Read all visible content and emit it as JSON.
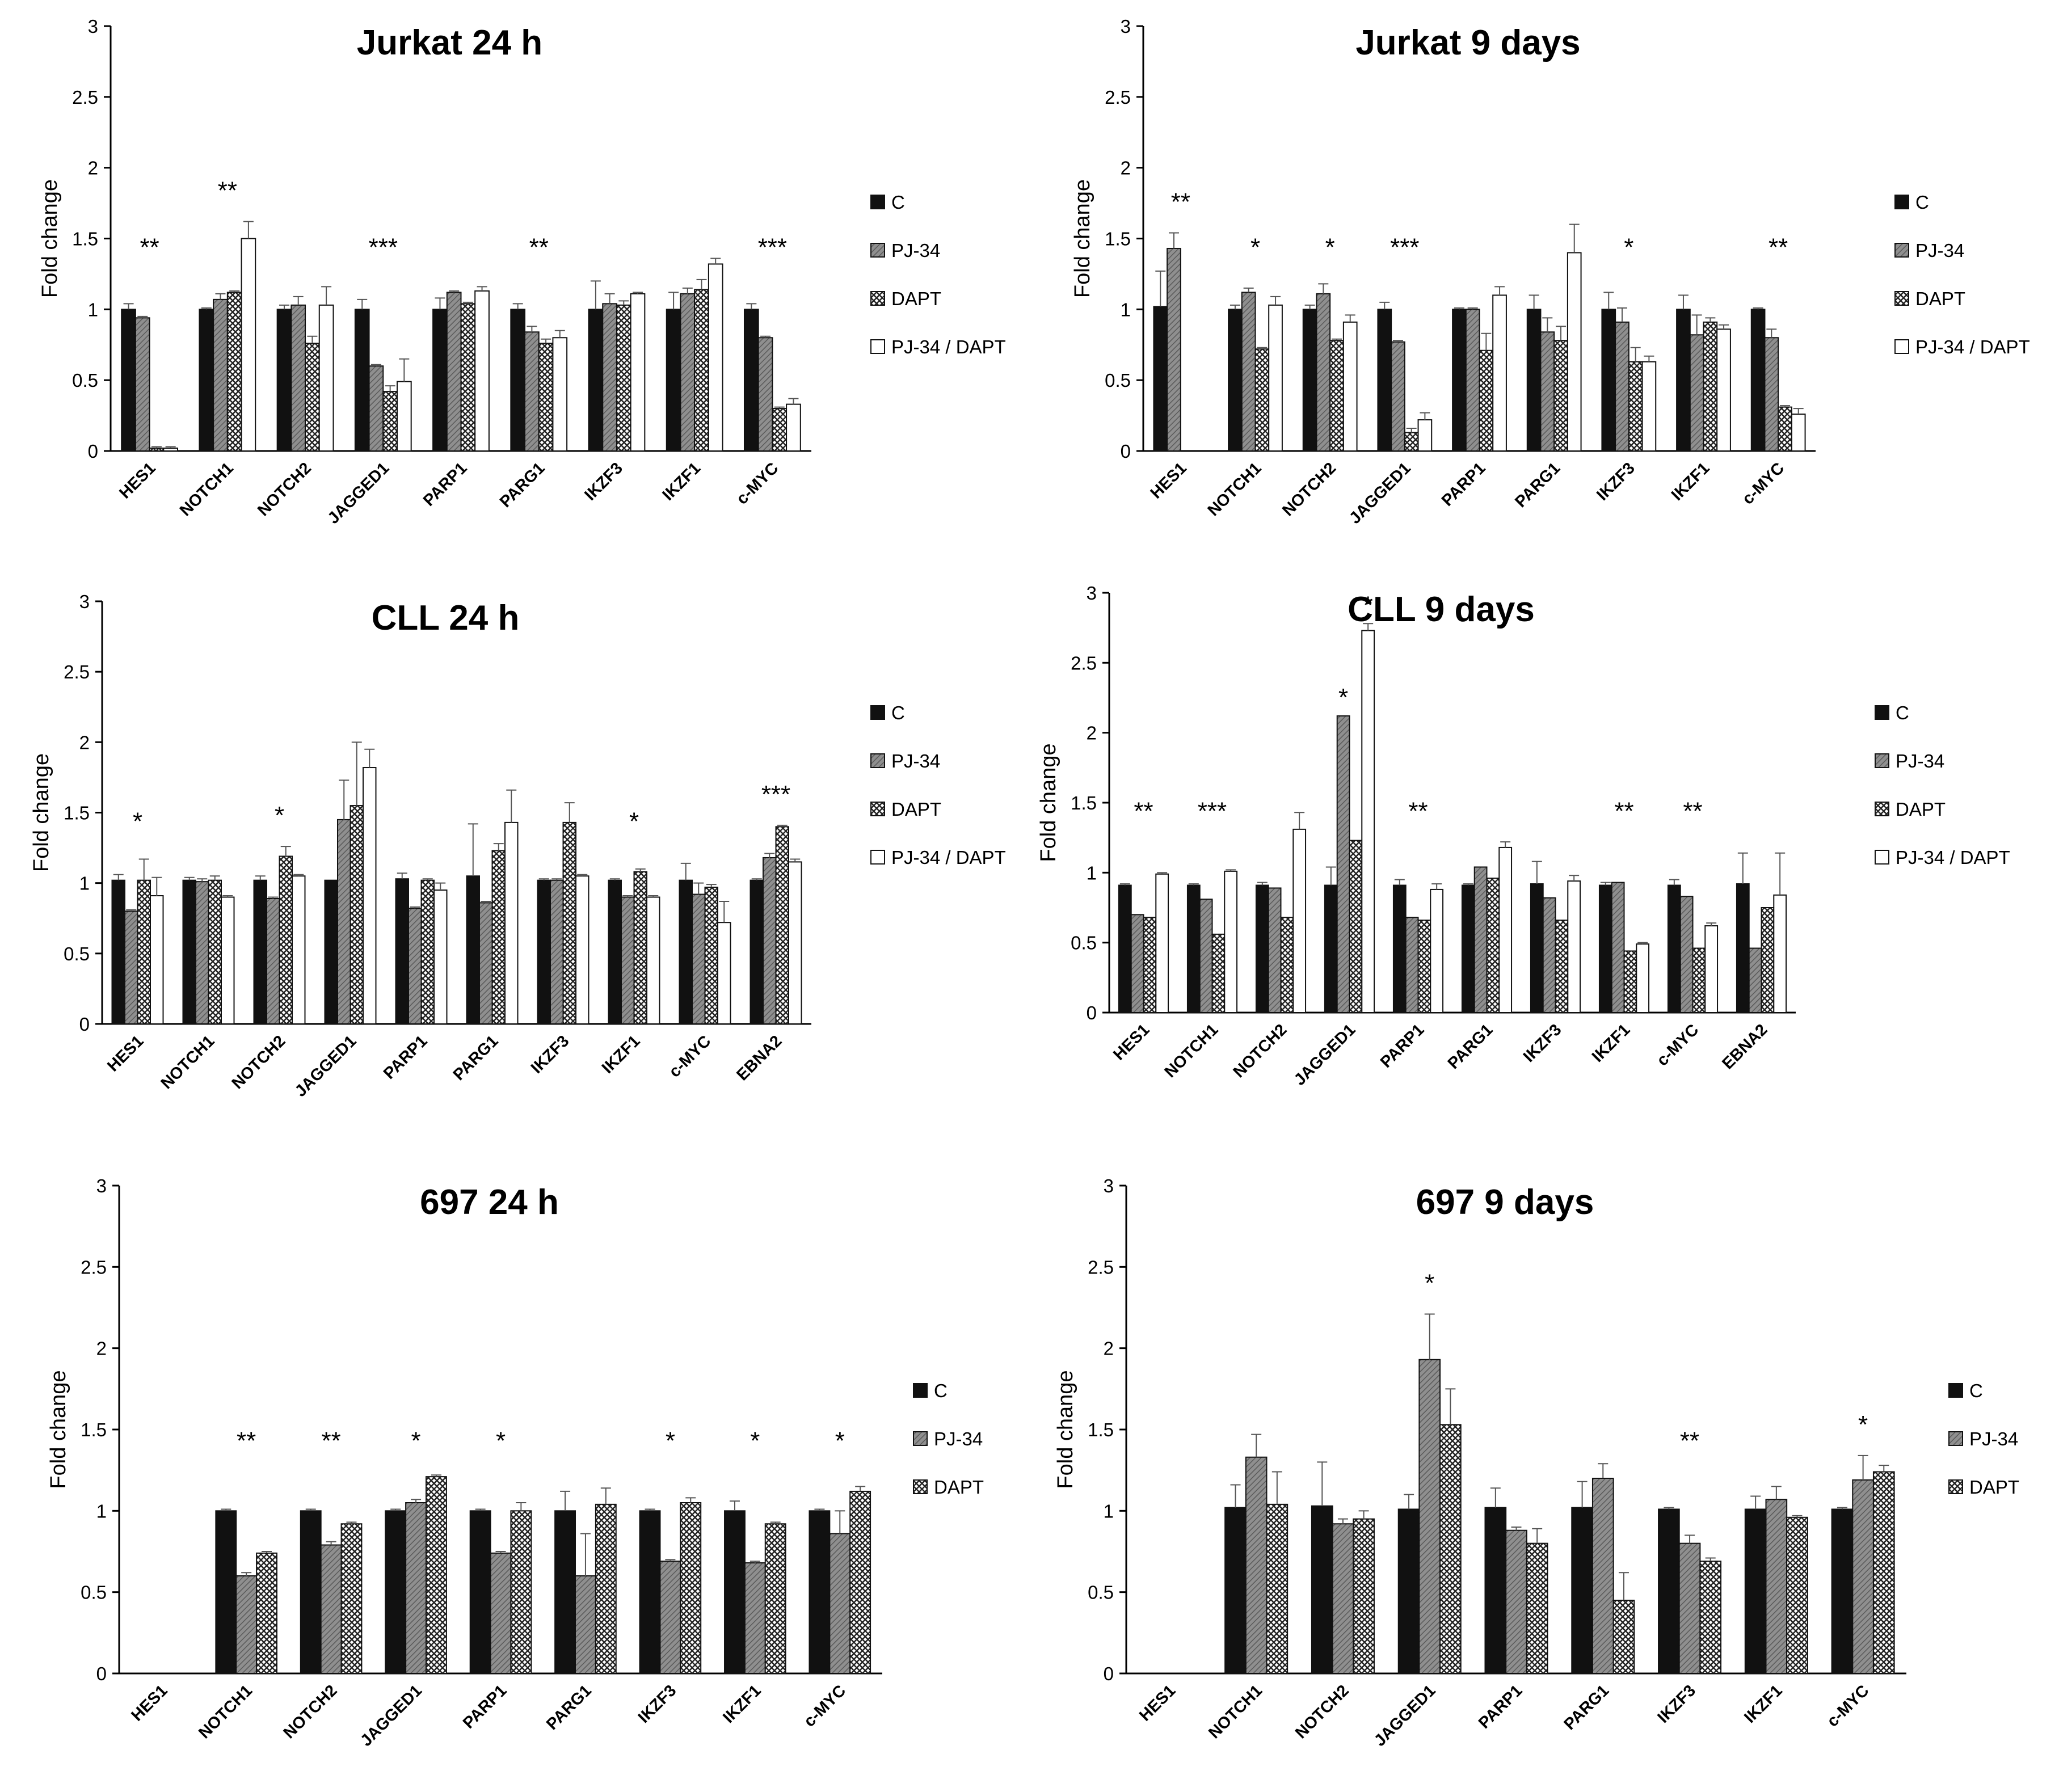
{
  "patterns": {
    "C": "solid-black",
    "PJ-34": "gray-hatched",
    "DAPT": "checkered",
    "PJ-34 / DAPT": "white"
  },
  "colors": {
    "dark": "#111111",
    "gray": "#8a8a8a",
    "white": "#ffffff"
  },
  "chart_data": [
    {
      "type": "bar",
      "title": "Jurkat 24 h",
      "ylabel": "Fold change",
      "ylim": [
        0,
        3
      ],
      "yticks": [
        "0",
        "0.5",
        "1",
        "1.5",
        "2",
        "2.5",
        "3"
      ],
      "grid": false,
      "legend": "right",
      "categories": [
        "HES1",
        "NOTCH1",
        "NOTCH2",
        "JAGGED1",
        "PARP1",
        "PARG1",
        "IKZF3",
        "IKZF1",
        "c-MYC"
      ],
      "significance": [
        "**",
        "**",
        "",
        "***",
        "",
        "**",
        "",
        "",
        "***"
      ],
      "series": [
        {
          "name": "C",
          "values": [
            1.0,
            1.0,
            1.0,
            1.0,
            1.0,
            1.0,
            1.0,
            1.0,
            1.0
          ],
          "errors": [
            0.04,
            0.01,
            0.03,
            0.07,
            0.08,
            0.04,
            0.2,
            0.12,
            0.04
          ]
        },
        {
          "name": "PJ-34",
          "values": [
            0.94,
            1.07,
            1.03,
            0.6,
            1.12,
            0.84,
            1.04,
            1.11,
            0.8
          ],
          "errors": [
            0.01,
            0.04,
            0.06,
            0.01,
            0.01,
            0.04,
            0.07,
            0.04,
            0.01
          ]
        },
        {
          "name": "DAPT",
          "values": [
            0.02,
            1.12,
            0.76,
            0.42,
            1.04,
            0.76,
            1.03,
            1.14,
            0.3
          ],
          "errors": [
            0.01,
            0.01,
            0.05,
            0.04,
            0.01,
            0.03,
            0.03,
            0.07,
            0.01
          ]
        },
        {
          "name": "PJ-34 / DAPT",
          "values": [
            0.02,
            1.5,
            1.03,
            0.49,
            1.13,
            0.8,
            1.11,
            1.32,
            0.33
          ],
          "errors": [
            0.01,
            0.12,
            0.13,
            0.16,
            0.03,
            0.05,
            0.01,
            0.04,
            0.04
          ]
        }
      ]
    },
    {
      "type": "bar",
      "title": "Jurkat 9 days",
      "ylabel": "Fold change",
      "ylim": [
        0,
        3
      ],
      "yticks": [
        "0",
        "0.5",
        "1",
        "1.5",
        "2",
        "2.5",
        "3"
      ],
      "grid": false,
      "legend": "right",
      "categories": [
        "HES1",
        "NOTCH1",
        "NOTCH2",
        "JAGGED1",
        "PARP1",
        "PARG1",
        "IKZF3",
        "IKZF1",
        "c-MYC"
      ],
      "significance": [
        "**",
        "*",
        "*",
        "***",
        "",
        "",
        "*",
        "",
        "**"
      ],
      "series": [
        {
          "name": "C",
          "values": [
            1.02,
            1.0,
            1.0,
            1.0,
            1.0,
            1.0,
            1.0,
            1.0,
            1.0
          ],
          "errors": [
            0.25,
            0.03,
            0.03,
            0.05,
            0.01,
            0.1,
            0.12,
            0.1,
            0.01
          ]
        },
        {
          "name": "PJ-34",
          "values": [
            1.43,
            1.12,
            1.11,
            0.77,
            1.0,
            0.84,
            0.91,
            0.82,
            0.8
          ],
          "errors": [
            0.11,
            0.03,
            0.07,
            0.01,
            0.01,
            0.1,
            0.1,
            0.14,
            0.06
          ]
        },
        {
          "name": "DAPT",
          "values": [
            0.0,
            0.72,
            0.78,
            0.13,
            0.71,
            0.78,
            0.63,
            0.91,
            0.31
          ],
          "errors": [
            0.0,
            0.01,
            0.01,
            0.03,
            0.12,
            0.1,
            0.1,
            0.03,
            0.01
          ]
        },
        {
          "name": "PJ-34 / DAPT",
          "values": [
            0.0,
            1.03,
            0.91,
            0.22,
            1.1,
            1.4,
            0.63,
            0.86,
            0.26
          ],
          "errors": [
            0.0,
            0.06,
            0.05,
            0.05,
            0.06,
            0.2,
            0.04,
            0.03,
            0.04
          ]
        }
      ]
    },
    {
      "type": "bar",
      "title": "CLL 24 h",
      "ylabel": "Fold change",
      "ylim": [
        0,
        3
      ],
      "yticks": [
        "0",
        "0.5",
        "1",
        "1.5",
        "2",
        "2.5",
        "3"
      ],
      "grid": false,
      "legend": "right",
      "categories": [
        "HES1",
        "NOTCH1",
        "NOTCH2",
        "JAGGED1",
        "PARP1",
        "PARG1",
        "IKZF3",
        "IKZF1",
        "c-MYC",
        "EBNA2"
      ],
      "significance": [
        "*",
        "",
        "*",
        "",
        "",
        "",
        "",
        "*",
        "",
        "***"
      ],
      "series": [
        {
          "name": "C",
          "values": [
            1.02,
            1.02,
            1.02,
            1.02,
            1.03,
            1.05,
            1.02,
            1.02,
            1.02,
            1.02
          ],
          "errors": [
            0.04,
            0.02,
            0.03,
            0.0,
            0.04,
            0.37,
            0.01,
            0.01,
            0.12,
            0.01
          ]
        },
        {
          "name": "PJ-34",
          "values": [
            0.8,
            1.01,
            0.89,
            1.45,
            0.82,
            0.86,
            1.02,
            0.9,
            0.92,
            1.18
          ],
          "errors": [
            0.01,
            0.02,
            0.01,
            0.28,
            0.01,
            0.01,
            0.01,
            0.01,
            0.08,
            0.03
          ]
        },
        {
          "name": "DAPT",
          "values": [
            1.02,
            1.02,
            1.19,
            1.55,
            1.02,
            1.23,
            1.43,
            1.08,
            0.97,
            1.4
          ],
          "errors": [
            0.15,
            0.03,
            0.07,
            0.45,
            0.01,
            0.05,
            0.14,
            0.02,
            0.02,
            0.01
          ]
        },
        {
          "name": "PJ-34 / DAPT",
          "values": [
            0.91,
            0.9,
            1.05,
            1.82,
            0.95,
            1.43,
            1.05,
            0.9,
            0.72,
            1.15
          ],
          "errors": [
            0.13,
            0.01,
            0.01,
            0.13,
            0.05,
            0.23,
            0.01,
            0.01,
            0.15,
            0.02
          ]
        }
      ]
    },
    {
      "type": "bar",
      "title": "CLL 9 days",
      "ylabel": "Fold change",
      "ylim": [
        0,
        3
      ],
      "yticks": [
        "0",
        "0.5",
        "1",
        "1.5",
        "2",
        "2.5",
        "3"
      ],
      "grid": false,
      "legend": "right",
      "categories": [
        "HES1",
        "NOTCH1",
        "NOTCH2",
        "JAGGED1",
        "PARP1",
        "PARG1",
        "IKZF3",
        "IKZF1",
        "c-MYC",
        "EBNA2"
      ],
      "significance": [
        "**",
        "***",
        "",
        "*|*",
        "**",
        "",
        "",
        "**",
        "**",
        ""
      ],
      "series": [
        {
          "name": "C",
          "values": [
            0.91,
            0.91,
            0.91,
            0.91,
            0.91,
            0.91,
            0.92,
            0.91,
            0.91,
            0.92
          ],
          "errors": [
            0.01,
            0.01,
            0.02,
            0.13,
            0.04,
            0.01,
            0.16,
            0.02,
            0.04,
            0.22
          ]
        },
        {
          "name": "PJ-34",
          "values": [
            0.7,
            0.81,
            0.89,
            2.12,
            0.68,
            1.04,
            0.82,
            0.93,
            0.83,
            0.46
          ]
        },
        {
          "name": "DAPT",
          "values": [
            0.68,
            0.56,
            0.68,
            1.23,
            0.66,
            0.96,
            0.66,
            0.44,
            0.46,
            0.75
          ]
        },
        {
          "name": "PJ-34 / DAPT",
          "values": [
            0.99,
            1.01,
            1.31,
            2.73,
            0.88,
            1.18,
            0.94,
            0.49,
            0.62,
            0.84
          ],
          "errors": [
            0.01,
            0.01,
            0.12,
            0.05,
            0.04,
            0.04,
            0.04,
            0.01,
            0.02,
            0.3
          ]
        }
      ]
    },
    {
      "type": "bar",
      "title": "697 24 h",
      "ylabel": "Fold change",
      "ylim": [
        0,
        3
      ],
      "yticks": [
        "0",
        "0.5",
        "1",
        "1.5",
        "2",
        "2.5",
        "3"
      ],
      "grid": false,
      "legend": "right",
      "categories": [
        "HES1",
        "NOTCH1",
        "NOTCH2",
        "JAGGED1",
        "PARP1",
        "PARG1",
        "IKZF3",
        "IKZF1",
        "c-MYC"
      ],
      "significance": [
        "",
        "**",
        "**",
        "*",
        "*",
        "",
        "*",
        "*",
        "*"
      ],
      "series": [
        {
          "name": "C",
          "values": [
            0,
            1.0,
            1.0,
            1.0,
            1.0,
            1.0,
            1.0,
            1.0,
            1.0
          ],
          "errors": [
            0,
            0.01,
            0.01,
            0.01,
            0.01,
            0.12,
            0.01,
            0.06,
            0.01
          ]
        },
        {
          "name": "PJ-34",
          "values": [
            0,
            0.6,
            0.79,
            1.05,
            0.74,
            0.6,
            0.69,
            0.68,
            0.86
          ],
          "errors": [
            0,
            0.02,
            0.02,
            0.02,
            0.01,
            0.26,
            0.01,
            0.01,
            0.14
          ]
        },
        {
          "name": "DAPT",
          "values": [
            0,
            0.74,
            0.92,
            1.21,
            1.0,
            1.04,
            1.05,
            0.92,
            1.12
          ],
          "errors": [
            0,
            0.01,
            0.01,
            0.01,
            0.05,
            0.1,
            0.03,
            0.01,
            0.03
          ]
        }
      ]
    },
    {
      "type": "bar",
      "title": "697 9 days",
      "ylabel": "Fold change",
      "ylim": [
        0,
        3
      ],
      "yticks": [
        "0",
        "0.5",
        "1",
        "1.5",
        "2",
        "2.5",
        "3"
      ],
      "grid": false,
      "legend": "right",
      "categories": [
        "HES1",
        "NOTCH1",
        "NOTCH2",
        "JAGGED1",
        "PARP1",
        "PARG1",
        "IKZF3",
        "IKZF1",
        "c-MYC"
      ],
      "significance": [
        "",
        "",
        "",
        "*",
        "",
        "",
        "**",
        "",
        "*"
      ],
      "series": [
        {
          "name": "C",
          "values": [
            0,
            1.02,
            1.03,
            1.01,
            1.02,
            1.02,
            1.01,
            1.01,
            1.01
          ],
          "errors": [
            0,
            0.14,
            0.27,
            0.09,
            0.12,
            0.16,
            0.01,
            0.08,
            0.01
          ]
        },
        {
          "name": "PJ-34",
          "values": [
            0,
            1.33,
            0.92,
            1.93,
            0.88,
            1.2,
            0.8,
            1.07,
            1.19
          ],
          "errors": [
            0,
            0.14,
            0.03,
            0.28,
            0.02,
            0.09,
            0.05,
            0.08,
            0.15
          ]
        },
        {
          "name": "DAPT",
          "values": [
            0,
            1.04,
            0.95,
            1.53,
            0.8,
            0.45,
            0.69,
            0.96,
            1.24
          ],
          "errors": [
            0,
            0.2,
            0.05,
            0.22,
            0.09,
            0.17,
            0.02,
            0.01,
            0.04
          ]
        }
      ]
    }
  ]
}
